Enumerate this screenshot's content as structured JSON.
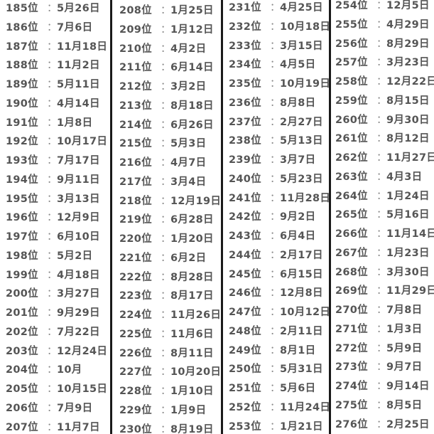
{
  "separator": "：",
  "columns": [
    {
      "rows": [
        {
          "rank": "185位",
          "date": "5月26日"
        },
        {
          "rank": "186位",
          "date": "7月6日"
        },
        {
          "rank": "187位",
          "date": "11月18日"
        },
        {
          "rank": "188位",
          "date": "11月2日"
        },
        {
          "rank": "189位",
          "date": "5月11日"
        },
        {
          "rank": "190位",
          "date": "4月14日"
        },
        {
          "rank": "191位",
          "date": "1月8日"
        },
        {
          "rank": "192位",
          "date": "10月17日"
        },
        {
          "rank": "193位",
          "date": "7月17日"
        },
        {
          "rank": "194位",
          "date": "9月11日"
        },
        {
          "rank": "195位",
          "date": "3月13日"
        },
        {
          "rank": "196位",
          "date": "12月9日"
        },
        {
          "rank": "197位",
          "date": "6月10日"
        },
        {
          "rank": "198位",
          "date": "5月2日"
        },
        {
          "rank": "199位",
          "date": "4月18日"
        },
        {
          "rank": "200位",
          "date": "3月27日"
        },
        {
          "rank": "201位",
          "date": "9月29日"
        },
        {
          "rank": "202位",
          "date": "7月22日"
        },
        {
          "rank": "203位",
          "date": "12月24日"
        },
        {
          "rank": "204位",
          "date": "10月"
        },
        {
          "rank": "205位",
          "date": "10月15日"
        },
        {
          "rank": "206位",
          "date": "7月9日"
        },
        {
          "rank": "207位",
          "date": "11月7日"
        }
      ]
    },
    {
      "rows": [
        {
          "rank": "208位",
          "date": "1月25日"
        },
        {
          "rank": "209位",
          "date": "1月12日"
        },
        {
          "rank": "210位",
          "date": "4月2日"
        },
        {
          "rank": "211位",
          "date": "6月14日"
        },
        {
          "rank": "212位",
          "date": "3月2日"
        },
        {
          "rank": "213位",
          "date": "8月18日"
        },
        {
          "rank": "214位",
          "date": "6月26日"
        },
        {
          "rank": "215位",
          "date": "5月3日"
        },
        {
          "rank": "216位",
          "date": "4月7日"
        },
        {
          "rank": "217位",
          "date": "3月4日"
        },
        {
          "rank": "218位",
          "date": "12月19日"
        },
        {
          "rank": "219位",
          "date": "6月28日"
        },
        {
          "rank": "220位",
          "date": "1月20日"
        },
        {
          "rank": "221位",
          "date": "6月2日"
        },
        {
          "rank": "222位",
          "date": "8月28日"
        },
        {
          "rank": "223位",
          "date": "8月17日"
        },
        {
          "rank": "224位",
          "date": "11月26日"
        },
        {
          "rank": "225位",
          "date": "11月6日"
        },
        {
          "rank": "226位",
          "date": "8月11日"
        },
        {
          "rank": "227位",
          "date": "10月20日"
        },
        {
          "rank": "228位",
          "date": "1月10日"
        },
        {
          "rank": "229位",
          "date": "1月9日"
        },
        {
          "rank": "230位",
          "date": "8月19日"
        }
      ]
    },
    {
      "rows": [
        {
          "rank": "231位",
          "date": "4月25日"
        },
        {
          "rank": "232位",
          "date": "10月18日"
        },
        {
          "rank": "233位",
          "date": "3月15日"
        },
        {
          "rank": "234位",
          "date": "4月5日"
        },
        {
          "rank": "235位",
          "date": "10月19日"
        },
        {
          "rank": "236位",
          "date": "8月8日"
        },
        {
          "rank": "237位",
          "date": "2月27日"
        },
        {
          "rank": "238位",
          "date": "5月13日"
        },
        {
          "rank": "239位",
          "date": "3月7日"
        },
        {
          "rank": "240位",
          "date": "5月23日"
        },
        {
          "rank": "241位",
          "date": "11月28日"
        },
        {
          "rank": "242位",
          "date": "9月2日"
        },
        {
          "rank": "243位",
          "date": "6月4日"
        },
        {
          "rank": "244位",
          "date": "2月17日"
        },
        {
          "rank": "245位",
          "date": "6月15日"
        },
        {
          "rank": "246位",
          "date": "12月8日"
        },
        {
          "rank": "247位",
          "date": "10月12日"
        },
        {
          "rank": "248位",
          "date": "2月11日"
        },
        {
          "rank": "249位",
          "date": "8月1日"
        },
        {
          "rank": "250位",
          "date": "5月31日"
        },
        {
          "rank": "251位",
          "date": "5月6日"
        },
        {
          "rank": "252位",
          "date": "11月24日"
        },
        {
          "rank": "253位",
          "date": "1月21日"
        }
      ]
    },
    {
      "rows": [
        {
          "rank": "254位",
          "date": "12月5日"
        },
        {
          "rank": "255位",
          "date": "4月29日"
        },
        {
          "rank": "256位",
          "date": "8月29日"
        },
        {
          "rank": "257位",
          "date": "3月23日"
        },
        {
          "rank": "258位",
          "date": "12月22日"
        },
        {
          "rank": "259位",
          "date": "8月15日"
        },
        {
          "rank": "260位",
          "date": "9月30日"
        },
        {
          "rank": "261位",
          "date": "8月12日"
        },
        {
          "rank": "262位",
          "date": "11月27日"
        },
        {
          "rank": "263位",
          "date": "4月3日"
        },
        {
          "rank": "264位",
          "date": "1月24日"
        },
        {
          "rank": "265位",
          "date": "5月16日"
        },
        {
          "rank": "266位",
          "date": "11月14日"
        },
        {
          "rank": "267位",
          "date": "1月23日"
        },
        {
          "rank": "268位",
          "date": "3月30日"
        },
        {
          "rank": "269位",
          "date": "11月29日"
        },
        {
          "rank": "270位",
          "date": "7月8日"
        },
        {
          "rank": "271位",
          "date": "1月3日"
        },
        {
          "rank": "272位",
          "date": "5月9日"
        },
        {
          "rank": "273位",
          "date": "9月7日"
        },
        {
          "rank": "274位",
          "date": "9月14日"
        },
        {
          "rank": "275位",
          "date": "8月5日"
        },
        {
          "rank": "276位",
          "date": "2月25日"
        }
      ]
    }
  ]
}
